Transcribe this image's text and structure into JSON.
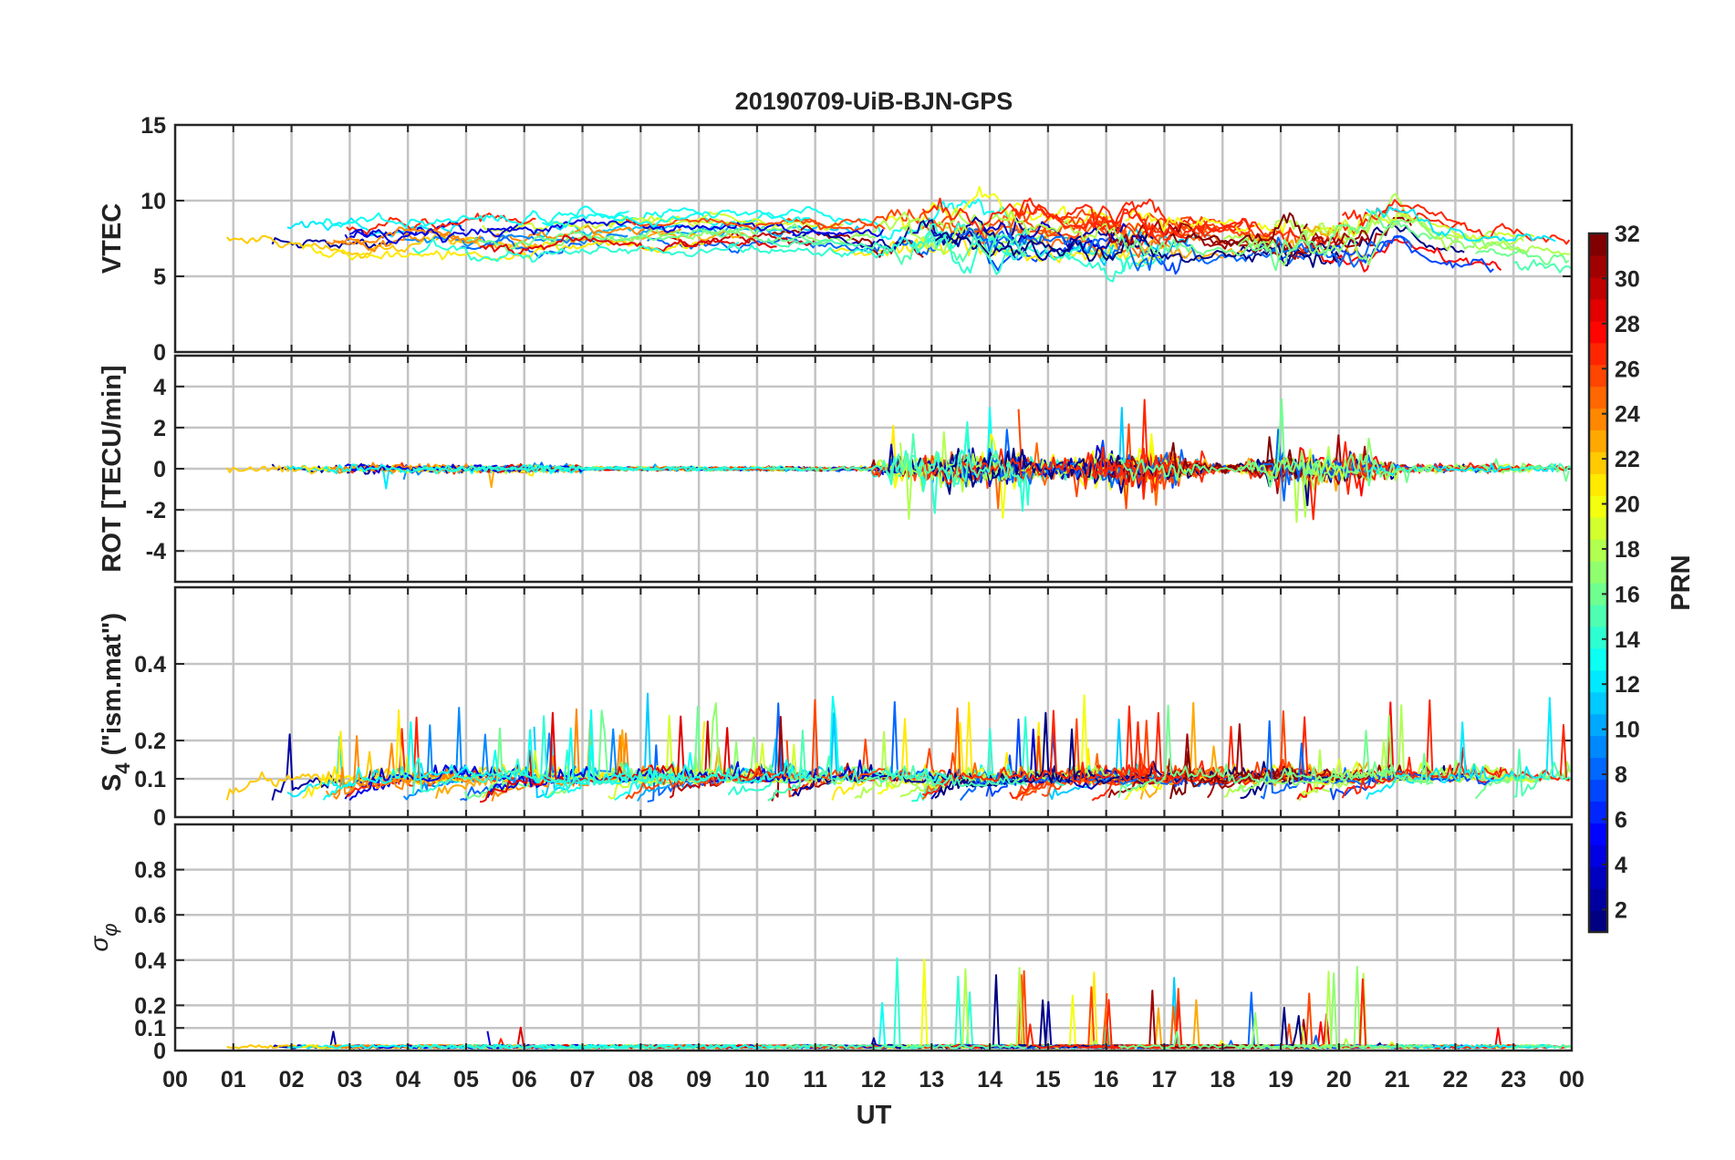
{
  "chart_data": {
    "type": "line",
    "title": "20190709-UiB-BJN-GPS",
    "x_axis": {
      "label": "UT",
      "tick_labels": [
        "00",
        "01",
        "02",
        "03",
        "04",
        "05",
        "06",
        "07",
        "08",
        "09",
        "10",
        "11",
        "12",
        "13",
        "14",
        "15",
        "16",
        "17",
        "18",
        "19",
        "20",
        "21",
        "22",
        "23",
        "00"
      ],
      "range_hours": [
        0,
        24
      ]
    },
    "colorbar": {
      "label": "PRN",
      "range": [
        1,
        32
      ],
      "ticks": [
        "2",
        "4",
        "6",
        "8",
        "10",
        "12",
        "14",
        "16",
        "18",
        "20",
        "22",
        "24",
        "26",
        "28",
        "30",
        "32"
      ],
      "colormap": "jet"
    },
    "panels": [
      {
        "id": "vtec",
        "ylabel": "VTEC",
        "ylim": [
          0,
          15
        ],
        "ytick_values": [
          0,
          5,
          10,
          15
        ],
        "ytick_labels": [
          "0",
          "5",
          "10",
          "15"
        ],
        "grid": true,
        "description_profile": [
          [
            0,
            8.2
          ],
          [
            1,
            8.4
          ],
          [
            2,
            7.6
          ],
          [
            3,
            7.4
          ],
          [
            4,
            7.6
          ],
          [
            5,
            7.6
          ],
          [
            6,
            7.6
          ],
          [
            7,
            7.8
          ],
          [
            8,
            7.9
          ],
          [
            9,
            8.0
          ],
          [
            10,
            7.9
          ],
          [
            11,
            7.8
          ],
          [
            12,
            7.6
          ],
          [
            13,
            7.9
          ],
          [
            14,
            7.8
          ],
          [
            15,
            7.8
          ],
          [
            16,
            7.6
          ],
          [
            17,
            7.3
          ],
          [
            18,
            7.2
          ],
          [
            19,
            7.0
          ],
          [
            20,
            7.3
          ],
          [
            21,
            8.6
          ],
          [
            22,
            7.2
          ],
          [
            23,
            6.8
          ],
          [
            24,
            6.6
          ]
        ]
      },
      {
        "id": "rot",
        "ylabel": "ROT [TECU/min]",
        "ylim": [
          -5.5,
          5.5
        ],
        "ytick_values": [
          -4,
          -2,
          0,
          2,
          4
        ],
        "ytick_labels": [
          "-4",
          "-2",
          "0",
          "2",
          "4"
        ],
        "grid": true
      },
      {
        "id": "s4",
        "ylabel": "S4 (\"ism.mat\")",
        "ylabel_main": "S",
        "ylabel_sub": "4",
        "ylabel_rest": " (\"ism.mat\")",
        "ylim": [
          0,
          0.6
        ],
        "ytick_values": [
          0,
          0.1,
          0.2,
          0.4
        ],
        "ytick_labels": [
          "0",
          "0.1",
          "0.2",
          "0.4"
        ],
        "grid": true
      },
      {
        "id": "sigma",
        "ylabel": "σ φ",
        "ylabel_main": "σ",
        "ylabel_sub": "φ",
        "ylim": [
          0,
          1
        ],
        "ytick_values": [
          0,
          0.1,
          0.2,
          0.4,
          0.6,
          0.8
        ],
        "ytick_labels": [
          "0",
          "0.1",
          "0.2",
          "0.4",
          "0.6",
          "0.8"
        ],
        "grid": true
      }
    ],
    "activity_windows_hours": [
      [
        12.3,
        14.7
      ],
      [
        15.6,
        17.3
      ],
      [
        18.8,
        20.6
      ]
    ]
  }
}
